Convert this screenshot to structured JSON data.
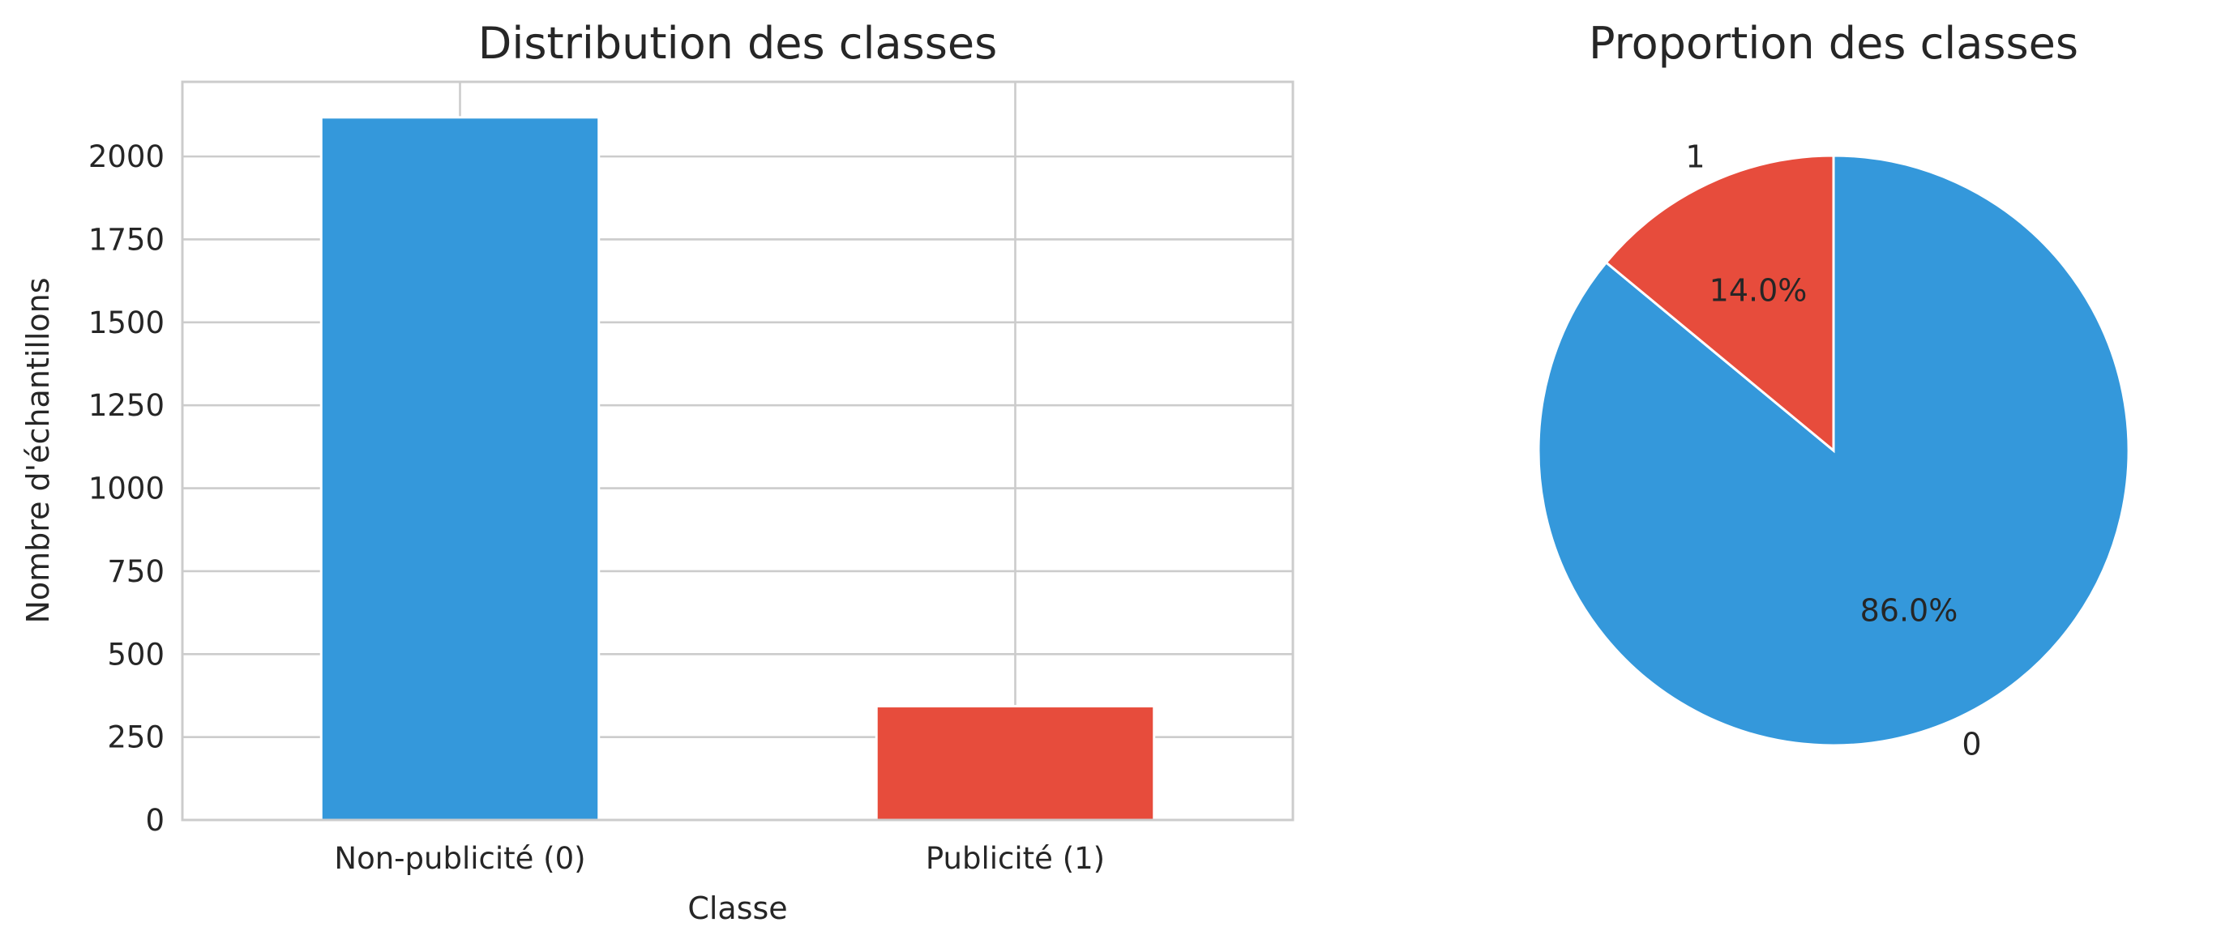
{
  "chart_data": [
    {
      "type": "bar",
      "title": "Distribution des classes",
      "xlabel": "Classe",
      "ylabel": "Nombre d'échantillons",
      "categories": [
        "Non-publicité (0)",
        "Publicité (1)"
      ],
      "values": [
        2118,
        343
      ],
      "colors": [
        "#3498db",
        "#e74c3c"
      ],
      "ylim": [
        0,
        2225
      ],
      "yticks": [
        0,
        250,
        500,
        750,
        1000,
        1250,
        1500,
        1750,
        2000
      ],
      "grid": true,
      "legend": "none"
    },
    {
      "type": "pie",
      "title": "Proportion des classes",
      "labels": [
        "0",
        "1"
      ],
      "values": [
        86.0,
        14.0
      ],
      "percent_labels": [
        "86.0%",
        "14.0%"
      ],
      "colors": [
        "#3498db",
        "#e74c3c"
      ],
      "start_angle": 90,
      "direction": "clockwise",
      "edge_color": "#ffffff"
    }
  ]
}
